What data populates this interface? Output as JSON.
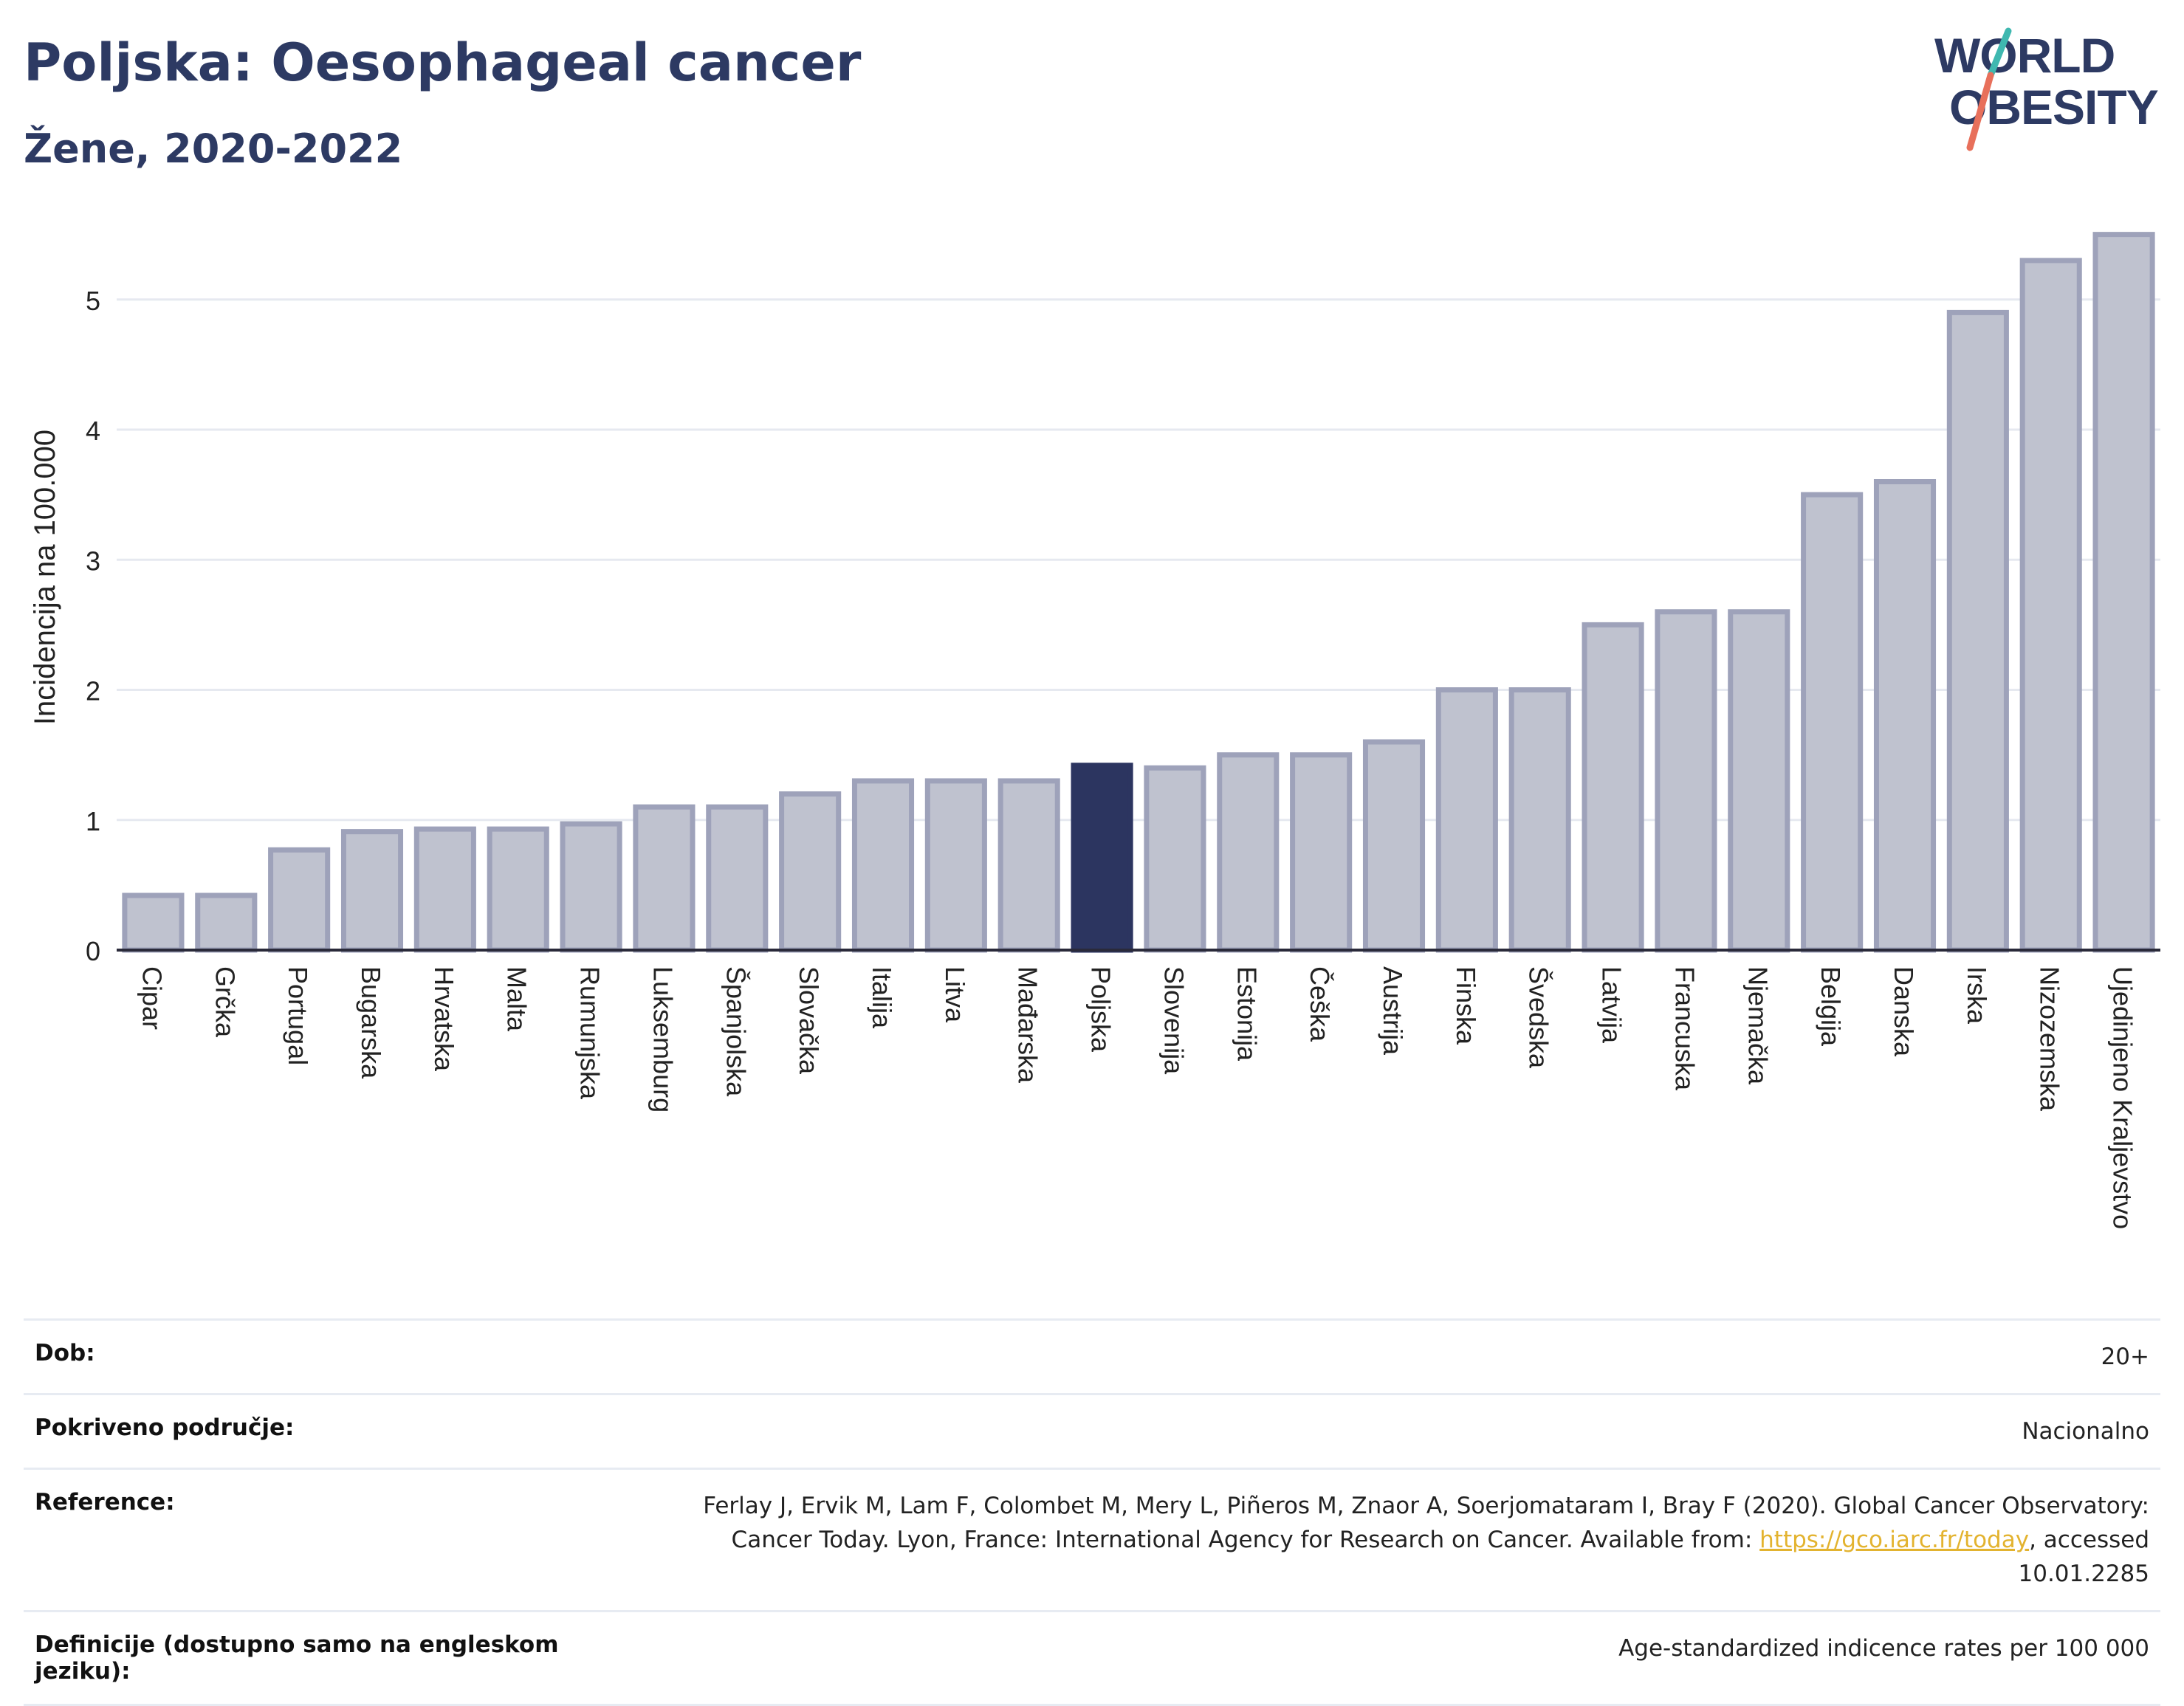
{
  "header": {
    "title": "Poljska: Oesophageal cancer",
    "subtitle": "Žene, 2020-2022"
  },
  "logo": {
    "line1": "WORLD",
    "line2": "OBESITY"
  },
  "chart_data": {
    "type": "bar",
    "title": "Poljska: Oesophageal cancer",
    "subtitle": "Žene, 2020-2022",
    "ylabel": "Incidencija na 100.000",
    "xlabel": "",
    "ylim": [
      0,
      5.6
    ],
    "yticks": [
      0,
      1,
      2,
      3,
      4,
      5
    ],
    "grid": true,
    "highlight": "Poljska",
    "categories": [
      "Cipar",
      "Grčka",
      "Portugal",
      "Bugarska",
      "Hrvatska",
      "Malta",
      "Rumunjska",
      "Luksemburg",
      "Španjolska",
      "Slovačka",
      "Italija",
      "Litva",
      "Mađarska",
      "Poljska",
      "Slovenija",
      "Estonija",
      "Češka",
      "Austrija",
      "Finska",
      "Švedska",
      "Latvija",
      "Francuska",
      "Njemačka",
      "Belgija",
      "Danska",
      "Irska",
      "Nizozemska",
      "Ujedinjeno Kraljevstvo"
    ],
    "values": [
      0.42,
      0.42,
      0.77,
      0.91,
      0.93,
      0.93,
      0.97,
      1.1,
      1.1,
      1.2,
      1.3,
      1.3,
      1.3,
      1.42,
      1.4,
      1.5,
      1.5,
      1.6,
      2.0,
      2.0,
      2.5,
      2.6,
      2.6,
      3.5,
      3.6,
      4.9,
      5.3,
      5.5
    ],
    "colors": {
      "bar_fill": "#bfc2cf",
      "bar_stroke": "#9ea2ba",
      "highlight_fill": "#2c3560",
      "grid": "#e6e9f0",
      "axis": "#2a2a3a"
    }
  },
  "info": {
    "age_label": "Dob:",
    "age_value": "20+",
    "coverage_label": "Pokriveno područje:",
    "coverage_value": "Nacionalno",
    "reference_label": "Reference:",
    "reference_text": "Ferlay J, Ervik M, Lam F, Colombet M, Mery L, Piñeros M, Znaor A, Soerjomataram I, Bray F (2020). Global Cancer Observatory: Cancer Today. Lyon, France: International Agency for Research on Cancer. Available from: ",
    "reference_link": "https://gco.iarc.fr/today",
    "reference_suffix": ", accessed 10.01.2285",
    "definition_label": "Definicije (dostupno samo na engleskom jeziku):",
    "definition_value": "Age-standardized indicence rates per 100 000"
  }
}
